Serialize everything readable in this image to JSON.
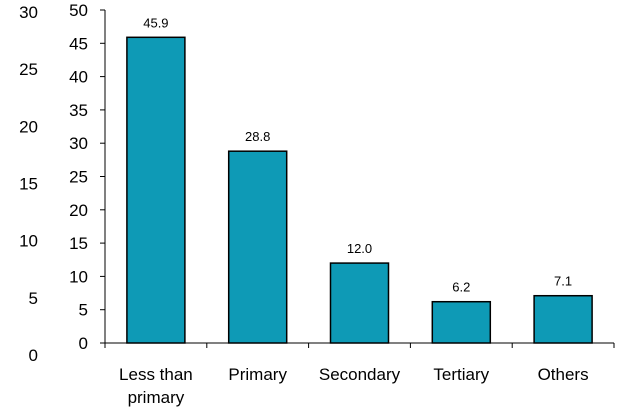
{
  "chart_data": {
    "type": "bar",
    "title": "",
    "xlabel": "",
    "ylabel": "",
    "categories": [
      [
        "Less than",
        "primary"
      ],
      [
        "Primary"
      ],
      [
        "Secondary"
      ],
      [
        "Tertiary"
      ],
      [
        "Others"
      ]
    ],
    "values": [
      45.9,
      28.8,
      12.0,
      6.2,
      7.1
    ],
    "data_labels": [
      "45.9",
      "28.8",
      "12.0",
      "6.2",
      "7.1"
    ],
    "ylim": [
      0,
      50
    ],
    "yticks": [
      "0",
      "5",
      "10",
      "15",
      "20",
      "25",
      "30",
      "35",
      "40",
      "45",
      "50"
    ],
    "secondary_ylim": [
      0,
      30
    ],
    "secondary_yticks": [
      "0",
      "5",
      "10",
      "15",
      "20",
      "25",
      "30"
    ],
    "bar_color": "#0e9ab6",
    "bar_border_color": "#000000",
    "grid": false,
    "legend": "none"
  }
}
